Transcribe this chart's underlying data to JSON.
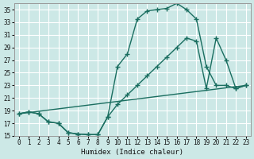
{
  "xlabel": "Humidex (Indice chaleur)",
  "xlim": [
    -0.5,
    23.5
  ],
  "ylim": [
    15,
    36
  ],
  "xticks": [
    0,
    1,
    2,
    3,
    4,
    5,
    6,
    7,
    8,
    9,
    10,
    11,
    12,
    13,
    14,
    15,
    16,
    17,
    18,
    19,
    20,
    21,
    22,
    23
  ],
  "yticks": [
    15,
    17,
    19,
    21,
    23,
    25,
    27,
    29,
    31,
    33,
    35
  ],
  "bg_color": "#cce8e6",
  "grid_color": "#ffffff",
  "line_color": "#1a6e60",
  "line1_x": [
    0,
    1,
    2,
    3,
    4,
    5,
    6,
    7,
    8,
    9,
    10,
    11,
    12,
    13,
    14,
    15,
    16,
    17,
    18,
    19,
    20,
    21,
    22,
    23
  ],
  "line1_y": [
    18.5,
    18.8,
    18.5,
    17.2,
    17.0,
    15.5,
    15.3,
    15.2,
    15.2,
    18.0,
    26.0,
    28.0,
    33.5,
    34.8,
    35.0,
    35.2,
    36.0,
    35.0,
    33.5,
    26.0,
    23.0,
    23.0,
    22.5,
    23.0
  ],
  "line2_x": [
    0,
    1,
    2,
    3,
    4,
    5,
    6,
    7,
    8,
    9,
    10,
    11,
    12,
    13,
    14,
    15,
    16,
    17,
    18,
    19,
    20,
    21,
    22,
    23
  ],
  "line2_y": [
    18.5,
    18.8,
    18.5,
    17.2,
    17.0,
    15.5,
    15.3,
    15.2,
    15.2,
    18.0,
    20.0,
    21.5,
    23.0,
    24.5,
    26.0,
    27.5,
    29.0,
    30.5,
    30.0,
    22.5,
    30.5,
    27.0,
    22.5,
    23.0
  ],
  "line3_x": [
    0,
    23
  ],
  "line3_y": [
    18.5,
    23.0
  ]
}
